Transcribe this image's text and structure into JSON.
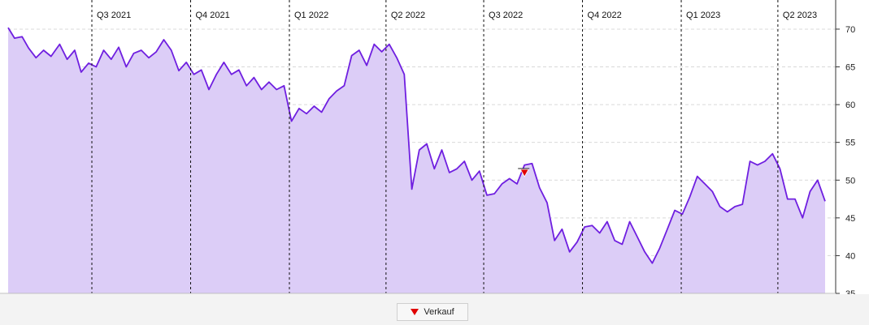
{
  "chart_data": {
    "type": "area",
    "title": "",
    "xlabel": "",
    "ylabel": "",
    "x_range": [
      "2021-04-14",
      "2023-05-15"
    ],
    "ylim": [
      35,
      73
    ],
    "y_ticks": [
      35,
      40,
      45,
      50,
      55,
      60,
      65,
      70
    ],
    "y_axis_position": "right",
    "grid": {
      "horizontal": "dashed",
      "quarter_separators": "dashed-vertical"
    },
    "quarters": [
      {
        "label": "Q3 2021",
        "date": "2021-07-01"
      },
      {
        "label": "Q4 2021",
        "date": "2021-10-01"
      },
      {
        "label": "Q1 2022",
        "date": "2022-01-01"
      },
      {
        "label": "Q2 2022",
        "date": "2022-04-01"
      },
      {
        "label": "Q3 2022",
        "date": "2022-07-01"
      },
      {
        "label": "Q4 2022",
        "date": "2022-10-01"
      },
      {
        "label": "Q1 2023",
        "date": "2023-01-01"
      },
      {
        "label": "Q2 2023",
        "date": "2023-04-01"
      }
    ],
    "series": [
      {
        "color": "#6f1fe0",
        "fill": "#dccdf7",
        "points": [
          [
            "2021-04-14",
            70.2
          ],
          [
            "2021-04-20",
            68.8
          ],
          [
            "2021-04-27",
            69.0
          ],
          [
            "2021-05-03",
            67.5
          ],
          [
            "2021-05-10",
            66.2
          ],
          [
            "2021-05-17",
            67.2
          ],
          [
            "2021-05-24",
            66.4
          ],
          [
            "2021-06-01",
            68.0
          ],
          [
            "2021-06-08",
            66.0
          ],
          [
            "2021-06-15",
            67.2
          ],
          [
            "2021-06-21",
            64.3
          ],
          [
            "2021-06-28",
            65.5
          ],
          [
            "2021-07-05",
            65.0
          ],
          [
            "2021-07-12",
            67.2
          ],
          [
            "2021-07-19",
            66.0
          ],
          [
            "2021-07-26",
            67.6
          ],
          [
            "2021-08-02",
            65.0
          ],
          [
            "2021-08-09",
            66.8
          ],
          [
            "2021-08-16",
            67.2
          ],
          [
            "2021-08-23",
            66.2
          ],
          [
            "2021-08-30",
            67.0
          ],
          [
            "2021-09-06",
            68.6
          ],
          [
            "2021-09-13",
            67.2
          ],
          [
            "2021-09-20",
            64.5
          ],
          [
            "2021-09-27",
            65.6
          ],
          [
            "2021-10-04",
            64.0
          ],
          [
            "2021-10-11",
            64.6
          ],
          [
            "2021-10-18",
            62.0
          ],
          [
            "2021-10-25",
            64.0
          ],
          [
            "2021-11-01",
            65.6
          ],
          [
            "2021-11-08",
            64.0
          ],
          [
            "2021-11-15",
            64.6
          ],
          [
            "2021-11-22",
            62.5
          ],
          [
            "2021-11-29",
            63.6
          ],
          [
            "2021-12-06",
            62.0
          ],
          [
            "2021-12-13",
            63.0
          ],
          [
            "2021-12-20",
            62.0
          ],
          [
            "2021-12-27",
            62.5
          ],
          [
            "2022-01-03",
            57.8
          ],
          [
            "2022-01-10",
            59.5
          ],
          [
            "2022-01-17",
            58.8
          ],
          [
            "2022-01-24",
            59.8
          ],
          [
            "2022-01-31",
            59.0
          ],
          [
            "2022-02-07",
            60.8
          ],
          [
            "2022-02-14",
            61.8
          ],
          [
            "2022-02-21",
            62.5
          ],
          [
            "2022-02-28",
            66.5
          ],
          [
            "2022-03-07",
            67.2
          ],
          [
            "2022-03-14",
            65.2
          ],
          [
            "2022-03-21",
            68.0
          ],
          [
            "2022-03-28",
            67.0
          ],
          [
            "2022-04-04",
            68.0
          ],
          [
            "2022-04-11",
            66.2
          ],
          [
            "2022-04-18",
            64.0
          ],
          [
            "2022-04-25",
            48.8
          ],
          [
            "2022-05-02",
            54.0
          ],
          [
            "2022-05-09",
            54.8
          ],
          [
            "2022-05-16",
            51.5
          ],
          [
            "2022-05-23",
            54.0
          ],
          [
            "2022-05-30",
            51.0
          ],
          [
            "2022-06-06",
            51.5
          ],
          [
            "2022-06-13",
            52.5
          ],
          [
            "2022-06-20",
            50.0
          ],
          [
            "2022-06-27",
            51.2
          ],
          [
            "2022-07-04",
            48.0
          ],
          [
            "2022-07-11",
            48.2
          ],
          [
            "2022-07-18",
            49.5
          ],
          [
            "2022-07-25",
            50.2
          ],
          [
            "2022-08-01",
            49.5
          ],
          [
            "2022-08-08",
            52.0
          ],
          [
            "2022-08-15",
            52.2
          ],
          [
            "2022-08-22",
            49.0
          ],
          [
            "2022-08-29",
            47.0
          ],
          [
            "2022-09-05",
            42.0
          ],
          [
            "2022-09-12",
            43.5
          ],
          [
            "2022-09-19",
            40.5
          ],
          [
            "2022-09-26",
            41.8
          ],
          [
            "2022-10-03",
            43.8
          ],
          [
            "2022-10-10",
            44.0
          ],
          [
            "2022-10-17",
            43.0
          ],
          [
            "2022-10-24",
            44.5
          ],
          [
            "2022-10-31",
            42.0
          ],
          [
            "2022-11-07",
            41.5
          ],
          [
            "2022-11-14",
            44.5
          ],
          [
            "2022-11-21",
            42.5
          ],
          [
            "2022-11-28",
            40.5
          ],
          [
            "2022-12-05",
            39.0
          ],
          [
            "2022-12-12",
            41.0
          ],
          [
            "2022-12-19",
            43.5
          ],
          [
            "2022-12-26",
            46.0
          ],
          [
            "2023-01-02",
            45.5
          ],
          [
            "2023-01-09",
            47.8
          ],
          [
            "2023-01-16",
            50.5
          ],
          [
            "2023-01-23",
            49.5
          ],
          [
            "2023-01-30",
            48.5
          ],
          [
            "2023-02-06",
            46.5
          ],
          [
            "2023-02-13",
            45.8
          ],
          [
            "2023-02-20",
            46.5
          ],
          [
            "2023-02-27",
            46.8
          ],
          [
            "2023-03-06",
            52.5
          ],
          [
            "2023-03-13",
            52.0
          ],
          [
            "2023-03-20",
            52.5
          ],
          [
            "2023-03-27",
            53.5
          ],
          [
            "2023-04-03",
            51.5
          ],
          [
            "2023-04-10",
            47.5
          ],
          [
            "2023-04-17",
            47.5
          ],
          [
            "2023-04-24",
            45.0
          ],
          [
            "2023-05-01",
            48.5
          ],
          [
            "2023-05-08",
            50.0
          ],
          [
            "2023-05-15",
            47.2
          ]
        ]
      }
    ],
    "markers": [
      {
        "date": "2022-08-08",
        "value": 51.0,
        "label": "Verkauf",
        "symbol": "down-triangle",
        "color": "#e00000"
      }
    ],
    "legend": {
      "placement": "bottom-center",
      "entries": [
        {
          "label": "Verkauf",
          "color": "#e00000"
        }
      ]
    }
  }
}
